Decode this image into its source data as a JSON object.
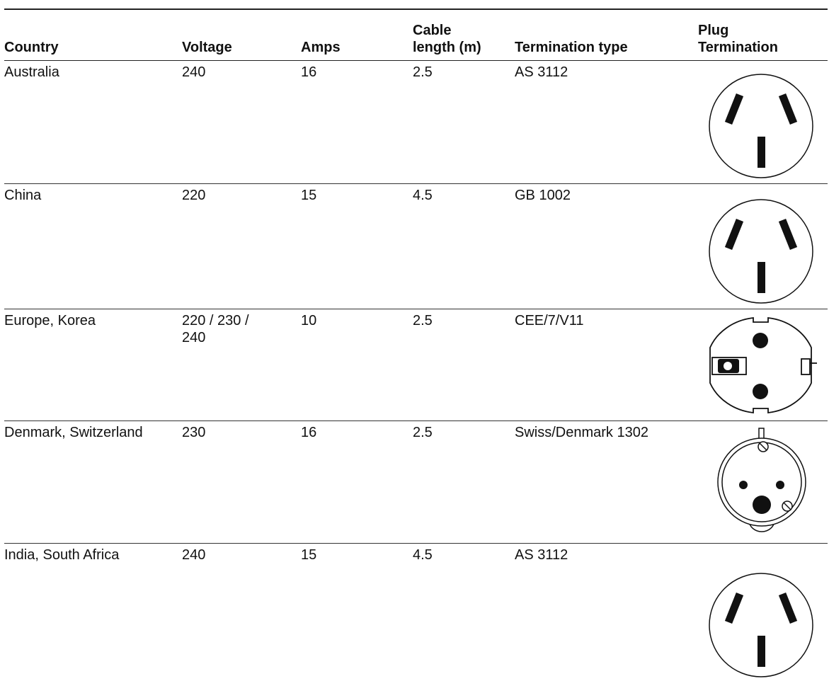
{
  "headers": {
    "country": "Country",
    "voltage": "Voltage",
    "amps": "Amps",
    "cable_length": "Cable\nlength (m)",
    "termination_type": "Termination type",
    "plug_termination": "Plug\nTermination"
  },
  "rows": [
    {
      "country": "Australia",
      "voltage": "240",
      "amps": "16",
      "cable_length": "2.5",
      "termination_type": "AS 3112",
      "plug_icon": "three-pin-angled-plug-icon"
    },
    {
      "country": "China",
      "voltage": "220",
      "amps": "15",
      "cable_length": "4.5",
      "termination_type": "GB 1002",
      "plug_icon": "three-pin-angled-plug-icon"
    },
    {
      "country": "Europe, Korea",
      "voltage": "220 / 230 /\n240",
      "amps": "10",
      "cable_length": "2.5",
      "termination_type": "CEE/7/V11",
      "plug_icon": "schuko-plug-icon"
    },
    {
      "country": "Denmark, Switzerland",
      "voltage": "230",
      "amps": "16",
      "cable_length": "2.5",
      "termination_type": "Swiss/Denmark 1302",
      "plug_icon": "swiss-plug-icon"
    },
    {
      "country": "India, South Africa",
      "voltage": "240",
      "amps": "15",
      "cable_length": "4.5",
      "termination_type": "AS 3112",
      "plug_icon": "three-pin-angled-plug-icon"
    }
  ]
}
